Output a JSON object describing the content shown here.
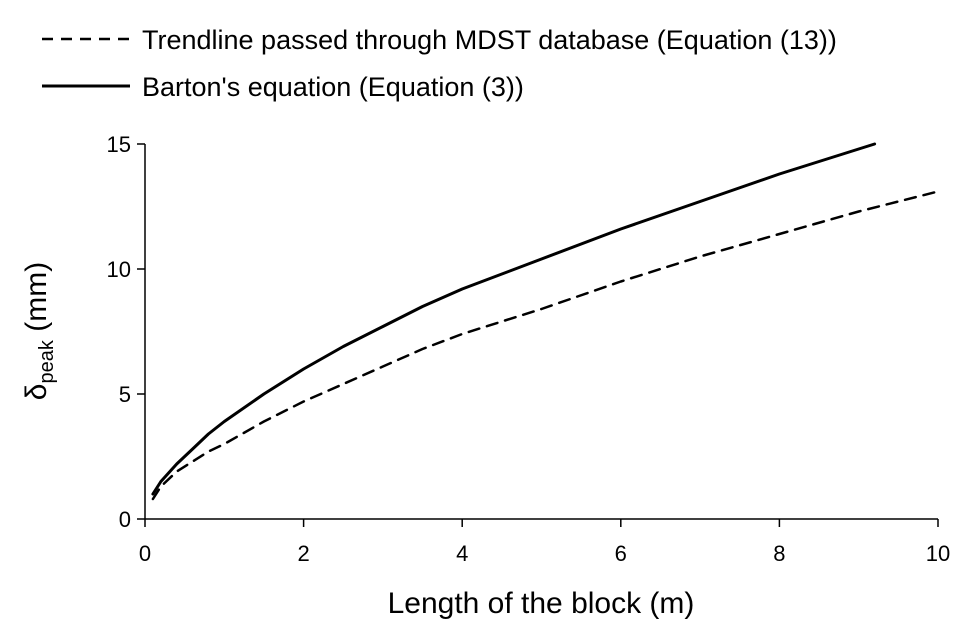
{
  "chart_data": {
    "type": "line",
    "xlabel": "Length of the block (m)",
    "ylabel": {
      "main": "δ",
      "subscript": "peak",
      "unit": " (mm)"
    },
    "xlim": [
      0,
      10
    ],
    "ylim": [
      0,
      15
    ],
    "x_ticks": [
      "0",
      "2",
      "4",
      "6",
      "8",
      "10"
    ],
    "y_ticks": [
      "0",
      "5",
      "10",
      "15"
    ],
    "grid": false,
    "legend_position": "top-left, above plot",
    "series": [
      {
        "name": "Trendline passed through MDST database (Equation (13))",
        "style": "dashed",
        "color": "#000000",
        "x": [
          0.1,
          0.2,
          0.4,
          0.6,
          0.8,
          1.0,
          1.5,
          2.0,
          2.5,
          3.0,
          3.5,
          4.0,
          5.0,
          6.0,
          7.0,
          8.0,
          9.0,
          10.0
        ],
        "y": [
          0.8,
          1.3,
          1.9,
          2.3,
          2.7,
          3.0,
          3.9,
          4.7,
          5.4,
          6.1,
          6.8,
          7.4,
          8.4,
          9.5,
          10.5,
          11.4,
          12.3,
          13.1
        ]
      },
      {
        "name": "Barton's equation (Equation (3))",
        "style": "solid",
        "color": "#000000",
        "x": [
          0.1,
          0.2,
          0.4,
          0.6,
          0.8,
          1.0,
          1.5,
          2.0,
          2.5,
          3.0,
          3.5,
          4.0,
          5.0,
          6.0,
          7.0,
          8.0,
          9.0,
          9.2
        ],
        "y": [
          1.0,
          1.5,
          2.2,
          2.8,
          3.4,
          3.9,
          5.0,
          6.0,
          6.9,
          7.7,
          8.5,
          9.2,
          10.4,
          11.6,
          12.7,
          13.8,
          14.8,
          15.0
        ]
      }
    ]
  }
}
